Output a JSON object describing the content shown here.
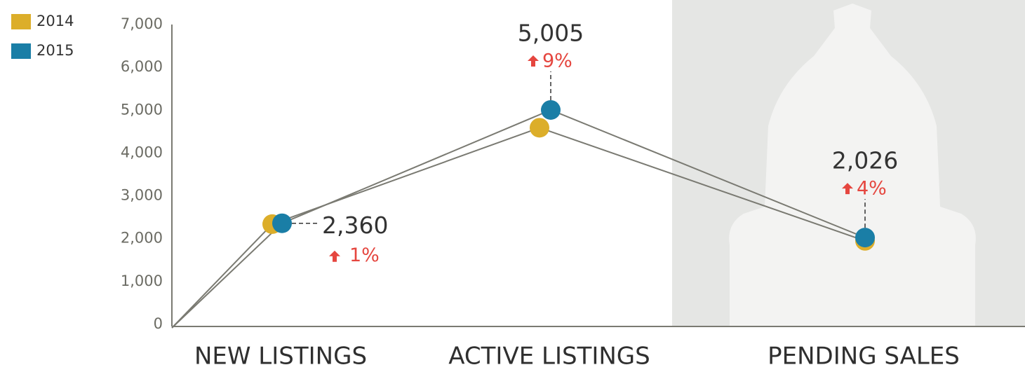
{
  "chart_data": {
    "type": "line",
    "categories": [
      "NEW LISTINGS",
      "ACTIVE LISTINGS",
      "PENDING SALES"
    ],
    "series": [
      {
        "name": "2014",
        "color": "#dcae2a",
        "values": [
          2340,
          4590,
          1950
        ]
      },
      {
        "name": "2015",
        "color": "#1a7ea6",
        "values": [
          2360,
          5005,
          2026
        ],
        "value_labels": [
          "2,360",
          "5,005",
          "2,026"
        ]
      }
    ],
    "changes": {
      "values": [
        1,
        9,
        4
      ],
      "value_labels": [
        "1%",
        "9%",
        "4%"
      ]
    },
    "ylim": [
      0,
      7000
    ],
    "yticks": [
      0,
      {
        "value": 1000,
        "label": "1,000"
      },
      {
        "value": 2000,
        "label": "2,000"
      },
      {
        "value": 3000,
        "label": "3,000"
      },
      {
        "value": 4000,
        "label": "4,000"
      },
      {
        "value": 5000,
        "label": "5,000"
      },
      {
        "value": 6000,
        "label": "6,000"
      },
      {
        "value": 7000,
        "label": "7,000"
      }
    ]
  }
}
